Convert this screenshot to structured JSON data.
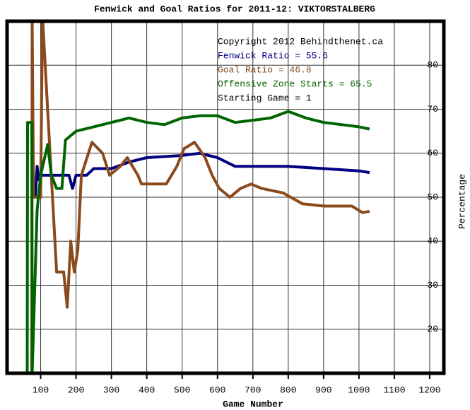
{
  "chart_data": {
    "type": "line",
    "title": "Fenwick and Goal Ratios for 2011-12: VIKTORSTALBERG",
    "x_label": "Game Number",
    "y_label": "Percentage",
    "annotations": [
      {
        "text": "Copyright 2012 Behindthenet.ca",
        "color": "#000000"
      },
      {
        "text": "Fenwick Ratio = 55.6",
        "color": "#000080"
      },
      {
        "text": "Goal Ratio = 46.8",
        "color": "#8b4a1c"
      },
      {
        "text": "Offensive Zone Starts = 65.5",
        "color": "#006400"
      },
      {
        "text": "Starting Game = 1",
        "color": "#000000"
      }
    ],
    "xlim": [
      5,
      1240
    ],
    "ylim": [
      10,
      90
    ],
    "xticks": [
      100,
      200,
      300,
      400,
      500,
      600,
      700,
      800,
      900,
      1000,
      1100,
      1200
    ],
    "yticks": [
      20,
      30,
      40,
      50,
      60,
      70,
      80
    ],
    "grid": true,
    "series": [
      {
        "name": "Fenwick Ratio",
        "color": "#000080",
        "x": [
          85,
          90,
          95,
          100,
          140,
          180,
          190,
          200,
          230,
          250,
          300,
          350,
          400,
          500,
          550,
          600,
          650,
          700,
          800,
          900,
          1000,
          1030
        ],
        "values": [
          50,
          57,
          54,
          55,
          55,
          55,
          52,
          55,
          55,
          56.5,
          56.5,
          58,
          59,
          59.5,
          60,
          59,
          57,
          57,
          57,
          56.5,
          56,
          55.6
        ]
      },
      {
        "name": "Goal Ratio",
        "color": "#8b4a1c",
        "x": [
          75,
          76,
          80,
          100,
          105,
          106,
          145,
          165,
          175,
          185,
          195,
          205,
          215,
          235,
          245,
          275,
          295,
          325,
          345,
          375,
          385,
          455,
          485,
          505,
          535,
          565,
          585,
          605,
          635,
          665,
          695,
          725,
          785,
          840,
          900,
          980,
          1010,
          1030
        ],
        "values": [
          10,
          90,
          50,
          50,
          90,
          90,
          33,
          33,
          25,
          40,
          33,
          38,
          55,
          60,
          62.5,
          60,
          55,
          57,
          59,
          55,
          53,
          53,
          57,
          61,
          62.5,
          59,
          55,
          52,
          50,
          52,
          53,
          52,
          51,
          48.5,
          48,
          48,
          46.5,
          46.8
        ]
      },
      {
        "name": "Offensive Zone Starts",
        "color": "#006400",
        "x": [
          62,
          63,
          75,
          76,
          90,
          100,
          120,
          130,
          145,
          160,
          170,
          200,
          250,
          300,
          350,
          400,
          450,
          500,
          550,
          600,
          650,
          700,
          750,
          800,
          850,
          900,
          1000,
          1030
        ],
        "values": [
          10,
          67,
          67,
          10,
          47,
          55,
          62,
          55,
          52,
          52,
          63,
          65,
          66,
          67,
          68,
          67,
          66.5,
          68,
          68.5,
          68.5,
          67,
          67.5,
          68,
          69.5,
          68,
          67,
          66,
          65.5
        ]
      }
    ]
  }
}
